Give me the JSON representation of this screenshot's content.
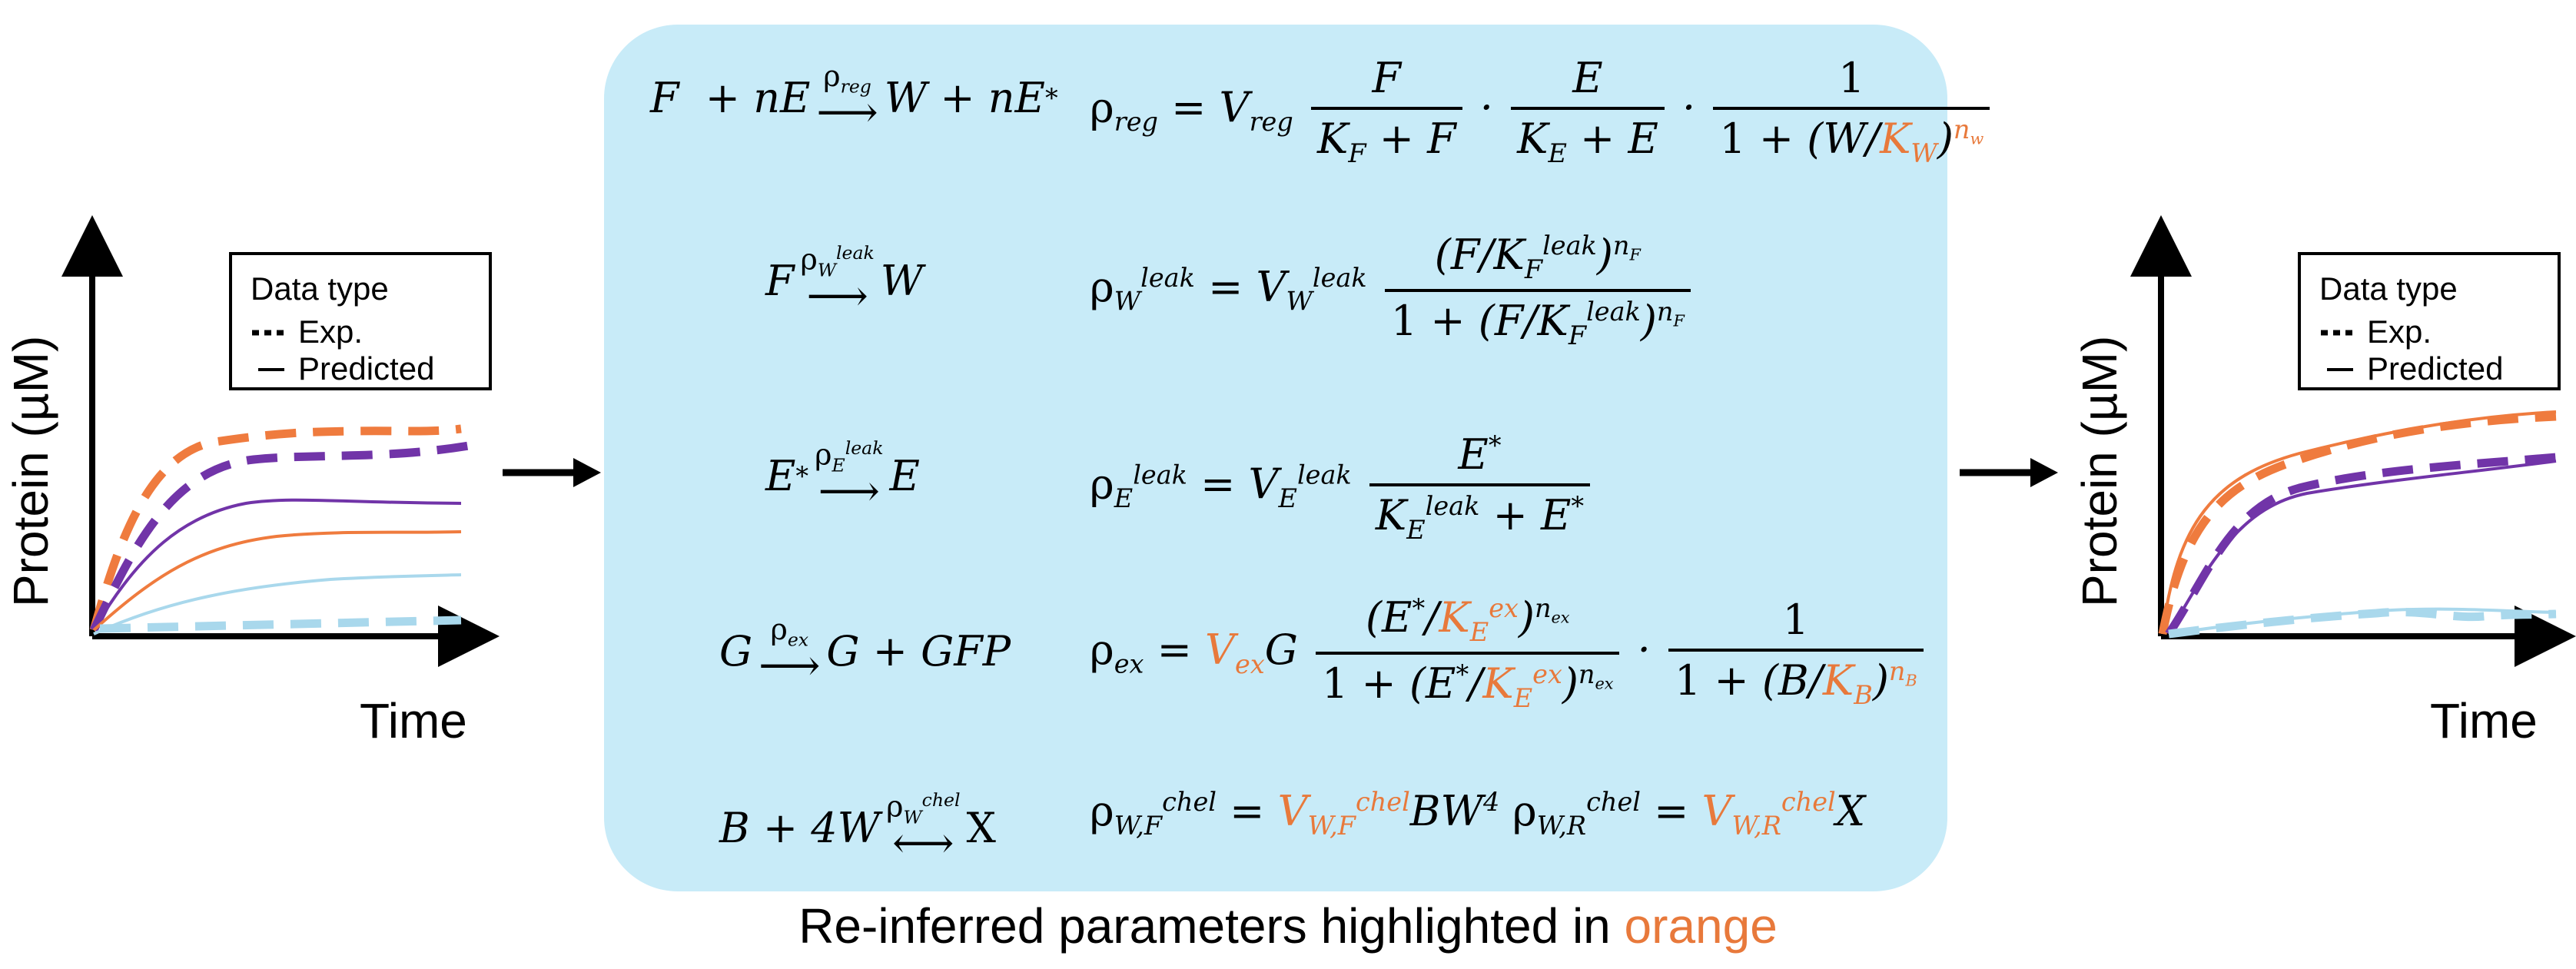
{
  "left_plot": {
    "y_label": "Protein (µM)",
    "x_label": "Time",
    "legend": {
      "title": "Data type",
      "exp_label": "Exp.",
      "pred_label": "Predicted"
    }
  },
  "right_plot": {
    "y_label": "Protein (µM)",
    "x_label": "Time",
    "legend": {
      "title": "Data type",
      "exp_label": "Exp.",
      "pred_label": "Predicted"
    }
  },
  "colors": {
    "highlight": "#e8793b",
    "orange": "#ef7b3e",
    "purple": "#7134a8",
    "light_blue": "#a9d8ec",
    "panel": "#c8ebf8"
  },
  "caption": {
    "prefix": "Re-inferred parameters highlighted in ",
    "highlight": "orange"
  }
}
